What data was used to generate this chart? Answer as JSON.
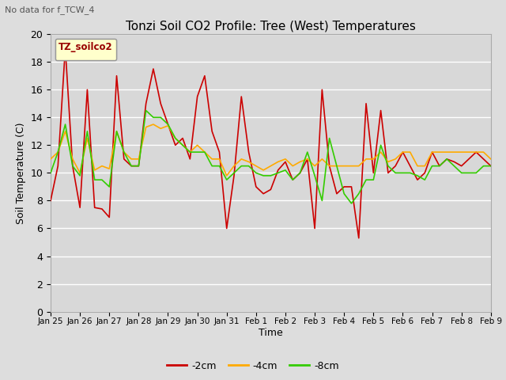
{
  "title": "Tonzi Soil CO2 Profile: Tree (West) Temperatures",
  "subtitle": "No data for f_TCW_4",
  "xlabel": "Time",
  "ylabel": "Soil Temperature (C)",
  "ylim": [
    0,
    20
  ],
  "yticks": [
    0,
    2,
    4,
    6,
    8,
    10,
    12,
    14,
    16,
    18,
    20
  ],
  "xtick_labels": [
    "Jan 25",
    "Jan 26",
    "Jan 27",
    "Jan 28",
    "Jan 29",
    "Jan 30",
    "Jan 31",
    "Feb 1",
    "Feb 2",
    "Feb 3",
    "Feb 4",
    "Feb 5",
    "Feb 6",
    "Feb 7",
    "Feb 8",
    "Feb 9"
  ],
  "legend_label": "TZ_soilco2",
  "series_labels": [
    "-2cm",
    "-4cm",
    "-8cm"
  ],
  "series_colors": [
    "#cc0000",
    "#ffaa00",
    "#33cc00"
  ],
  "fig_bg_color": "#dddddd",
  "plot_bg_color": "#d8d8d8",
  "grid_color": "#ffffff",
  "cm2": [
    8.0,
    10.5,
    19.0,
    10.5,
    7.5,
    16.0,
    7.5,
    7.4,
    6.8,
    17.0,
    11.0,
    10.5,
    10.5,
    15.0,
    17.5,
    15.0,
    13.5,
    12.0,
    12.5,
    11.0,
    15.5,
    17.0,
    13.0,
    11.5,
    6.0,
    9.8,
    15.5,
    11.5,
    9.0,
    8.5,
    8.8,
    10.2,
    10.8,
    9.5,
    10.0,
    11.0,
    6.0,
    16.0,
    10.5,
    8.5,
    9.0,
    9.0,
    5.3,
    15.0,
    10.0,
    14.5,
    10.0,
    10.5,
    11.5,
    10.5,
    9.5,
    10.0,
    11.5,
    10.5,
    11.0,
    10.8,
    10.5,
    11.0,
    11.5,
    11.0,
    10.5
  ],
  "cm4": [
    11.0,
    11.5,
    13.0,
    11.0,
    10.0,
    12.5,
    10.2,
    10.5,
    10.3,
    13.0,
    11.5,
    11.0,
    11.0,
    13.3,
    13.5,
    13.2,
    13.4,
    12.5,
    12.0,
    11.5,
    12.0,
    11.5,
    11.0,
    11.0,
    9.8,
    10.5,
    11.0,
    10.8,
    10.5,
    10.2,
    10.5,
    10.8,
    11.0,
    10.5,
    10.8,
    11.0,
    10.5,
    11.0,
    10.5,
    10.5,
    10.5,
    10.5,
    10.5,
    11.0,
    11.0,
    11.5,
    10.8,
    11.0,
    11.5,
    11.5,
    10.5,
    10.5,
    11.5,
    11.5,
    11.5,
    11.5,
    11.5,
    11.5,
    11.5,
    11.5,
    11.0
  ],
  "cm8": [
    10.0,
    11.5,
    13.5,
    10.5,
    9.8,
    13.0,
    9.5,
    9.5,
    9.0,
    13.0,
    11.5,
    10.5,
    10.5,
    14.5,
    14.0,
    14.0,
    13.5,
    12.5,
    12.0,
    11.5,
    11.5,
    11.5,
    10.5,
    10.5,
    9.5,
    10.0,
    10.5,
    10.5,
    10.0,
    9.8,
    9.8,
    10.0,
    10.2,
    9.5,
    10.0,
    11.5,
    9.8,
    8.0,
    12.5,
    10.5,
    8.5,
    7.8,
    8.5,
    9.5,
    9.5,
    12.0,
    10.5,
    10.0,
    10.0,
    10.0,
    9.8,
    9.5,
    10.5,
    10.5,
    11.0,
    10.5,
    10.0,
    10.0,
    10.0,
    10.5,
    10.5
  ]
}
